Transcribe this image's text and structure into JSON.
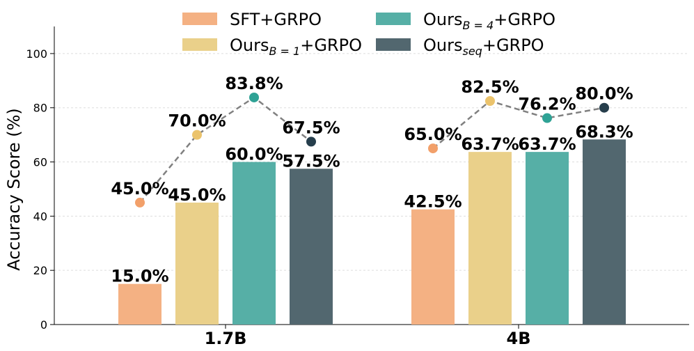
{
  "chart_data": {
    "type": "bar",
    "categories": [
      "1.7B",
      "4B"
    ],
    "ylabel": "Accuracy Score (%)",
    "xlabel": "",
    "ylim": [
      0,
      110
    ],
    "yticks": [
      0,
      20,
      40,
      60,
      80,
      100
    ],
    "grid": true,
    "legend_position": "top",
    "series": [
      {
        "name": "SFT+GRPO",
        "legend": {
          "base": "SFT+GRPO",
          "sub": "",
          "suffix": ""
        },
        "color": "#F4B183",
        "marker_color": "#F2A06A",
        "bar_values": [
          15.0,
          42.5
        ],
        "bar_labels": [
          "15.0%",
          "42.5%"
        ],
        "point_values": [
          45.0,
          65.0
        ],
        "point_labels": [
          "45.0%",
          "65.0%"
        ]
      },
      {
        "name": "Ours_{B=1}+GRPO",
        "legend": {
          "base": "Ours",
          "sub": "B = 1",
          "suffix": "+GRPO"
        },
        "color": "#EAD08A",
        "marker_color": "#EBC36C",
        "bar_values": [
          45.0,
          63.7
        ],
        "bar_labels": [
          "45.0%",
          "63.7%"
        ],
        "point_values": [
          70.0,
          82.5
        ],
        "point_labels": [
          "70.0%",
          "82.5%"
        ]
      },
      {
        "name": "Ours_{B=4}+GRPO",
        "legend": {
          "base": "Ours",
          "sub": "B = 4",
          "suffix": "+GRPO"
        },
        "color": "#56AFA6",
        "marker_color": "#2FA295",
        "bar_values": [
          60.0,
          63.7
        ],
        "bar_labels": [
          "60.0%",
          "63.7%"
        ],
        "point_values": [
          83.8,
          76.2
        ],
        "point_labels": [
          "83.8%",
          "76.2%"
        ]
      },
      {
        "name": "Ours_{seq}+GRPO",
        "legend": {
          "base": "Ours",
          "sub": "seq",
          "suffix": "+GRPO"
        },
        "color": "#52676F",
        "marker_color": "#263E4C",
        "bar_values": [
          57.5,
          68.3
        ],
        "bar_labels": [
          "57.5%",
          "68.3%"
        ],
        "point_values": [
          67.5,
          80.0
        ],
        "point_labels": [
          "67.5%",
          "80.0%"
        ]
      }
    ]
  }
}
